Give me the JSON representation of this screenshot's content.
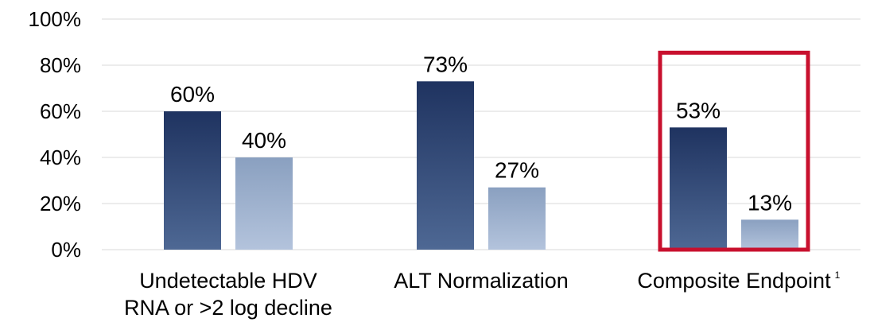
{
  "chart_data": {
    "type": "bar",
    "categories": [
      {
        "lines": [
          "Undetectable HDV",
          "RNA or >2 log decline"
        ],
        "superscript": ""
      },
      {
        "lines": [
          "ALT Normalization"
        ],
        "superscript": ""
      },
      {
        "lines": [
          "Composite Endpoint"
        ],
        "superscript": "1"
      }
    ],
    "series": [
      {
        "values": [
          60,
          73,
          53
        ],
        "labels": [
          "60%",
          "73%",
          "53%"
        ],
        "color_top": "#1f3360",
        "color_bottom": "#4e6894"
      },
      {
        "values": [
          40,
          27,
          13
        ],
        "labels": [
          "40%",
          "27%",
          "13%"
        ],
        "color_top": "#8aa0c0",
        "color_bottom": "#b3c3dc"
      }
    ],
    "ylim": [
      0,
      100
    ],
    "yticks": [
      "0%",
      "20%",
      "40%",
      "60%",
      "80%",
      "100%"
    ],
    "grid": true,
    "highlight": {
      "category_index": 2,
      "color": "#c8102e"
    }
  }
}
